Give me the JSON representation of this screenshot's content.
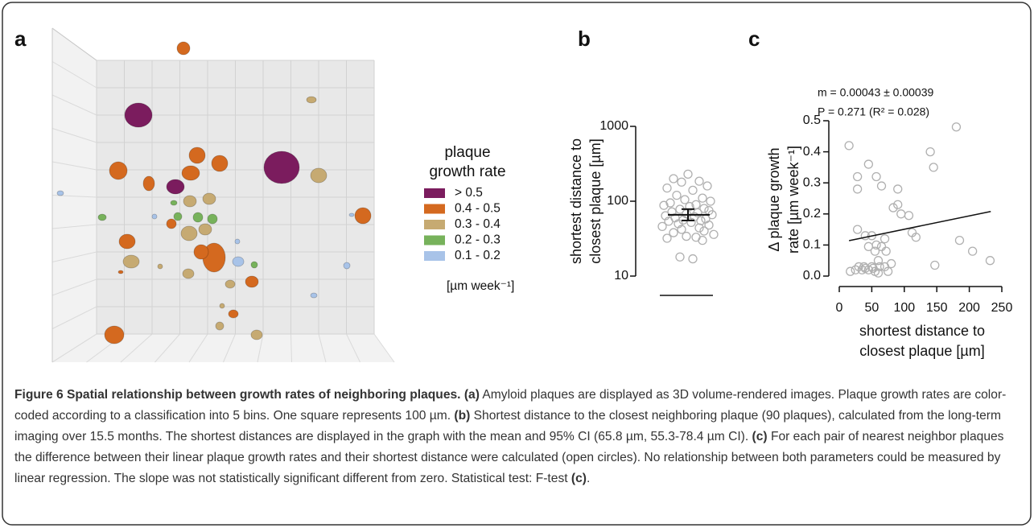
{
  "figure": {
    "panel_labels": [
      "a",
      "b",
      "c"
    ],
    "legend": {
      "title": [
        "plaque",
        "growth rate"
      ],
      "entries": [
        {
          "label": "> 0.5",
          "color": "#7b1c5e"
        },
        {
          "label": "0.4 - 0.5",
          "color": "#d4691f"
        },
        {
          "label": "0.3 - 0.4",
          "color": "#c6aa72"
        },
        {
          "label": "0.2 - 0.3",
          "color": "#77b25b"
        },
        {
          "label": "0.1 - 0.2",
          "color": "#a8c3e8"
        }
      ],
      "unit": "[µm week⁻¹]"
    }
  },
  "chart_data": [
    {
      "type": "strip",
      "ylabel": [
        "shortest distance to",
        "closest plaque [µm]"
      ],
      "log_y": true,
      "ylim": [
        10,
        1000
      ],
      "yticks": [
        10,
        100,
        1000
      ],
      "values": [
        230,
        200,
        185,
        180,
        160,
        150,
        140,
        120,
        110,
        105,
        100,
        95,
        90,
        88,
        85,
        80,
        78,
        75,
        72,
        70,
        68,
        66,
        64,
        62,
        60,
        58,
        56,
        55,
        54,
        52,
        50,
        48,
        46,
        44,
        42,
        40,
        38,
        36,
        34,
        33,
        32,
        30,
        18,
        17
      ],
      "mean": 65.8,
      "ci": [
        55.3,
        78.4
      ],
      "marker_color": "#b0b0b0"
    },
    {
      "type": "scatter",
      "xlabel": [
        "shortest distance to",
        "closest plaque [µm]"
      ],
      "ylabel": [
        "Δ plaque growth",
        "rate [µm week⁻¹]"
      ],
      "annotations": [
        "m = 0.00043 ± 0.00039",
        "P = 0.271 (R² = 0.028)"
      ],
      "xlim": [
        0,
        250
      ],
      "ylim": [
        0,
        0.5
      ],
      "xticks": [
        0,
        50,
        100,
        150,
        200,
        250
      ],
      "yticks": [
        {
          "value": 0,
          "label": "0.0"
        },
        0.1,
        0.2,
        0.3,
        0.4,
        0.5
      ],
      "x": [
        15,
        28,
        45,
        57,
        65,
        28,
        90,
        83,
        90,
        95,
        107,
        112,
        118,
        140,
        145,
        180,
        185,
        205,
        232,
        147,
        28,
        40,
        50,
        57,
        65,
        70,
        72,
        80,
        45,
        55,
        60,
        62,
        17,
        25,
        30,
        35,
        40,
        45,
        50,
        55,
        60,
        70,
        75,
        38,
        52
      ],
      "y": [
        0.42,
        0.32,
        0.36,
        0.32,
        0.29,
        0.28,
        0.28,
        0.22,
        0.23,
        0.2,
        0.195,
        0.14,
        0.125,
        0.4,
        0.35,
        0.48,
        0.115,
        0.08,
        0.05,
        0.035,
        0.15,
        0.13,
        0.13,
        0.1,
        0.095,
        0.12,
        0.08,
        0.04,
        0.095,
        0.08,
        0.05,
        0.03,
        0.015,
        0.02,
        0.03,
        0.02,
        0.025,
        0.02,
        0.03,
        0.015,
        0.01,
        0.03,
        0.015,
        0.03,
        0.025
      ],
      "regression": {
        "x": [
          15,
          233
        ],
        "y": [
          0.114,
          0.208
        ]
      },
      "marker_color": "#b0b0b0"
    }
  ],
  "caption": [
    {
      "text": "Figure 6 Spatial relationship between growth rates of neighboring plaques.",
      "bold": true
    },
    {
      "text": " ",
      "bold": false
    },
    {
      "text": "(a)",
      "bold": true
    },
    {
      "text": " Amyloid plaques are displayed as 3D volume-rendered images. Plaque growth rates are color-coded according to a classification into 5 bins. One square represents 100 µm. ",
      "bold": false
    },
    {
      "text": "(b)",
      "bold": true
    },
    {
      "text": " Shortest distance to the closest neighboring plaque (90 plaques), calculated from the long-term imaging over 15.5 months. The shortest distances are displayed in the graph with the mean and 95% CI (65.8 µm, 55.3-78.4 µm CI). ",
      "bold": false
    },
    {
      "text": "(c)",
      "bold": true
    },
    {
      "text": " For each pair of nearest neighbor plaques the difference between their linear plaque growth rates and their shortest distance were calculated (open circles). No relationship between both parameters could be measured by linear regression. The slope was not statistically significant different from zero. Statistical test: F-test ",
      "bold": false
    },
    {
      "text": "(c)",
      "bold": true
    },
    {
      "text": ".",
      "bold": false
    }
  ]
}
